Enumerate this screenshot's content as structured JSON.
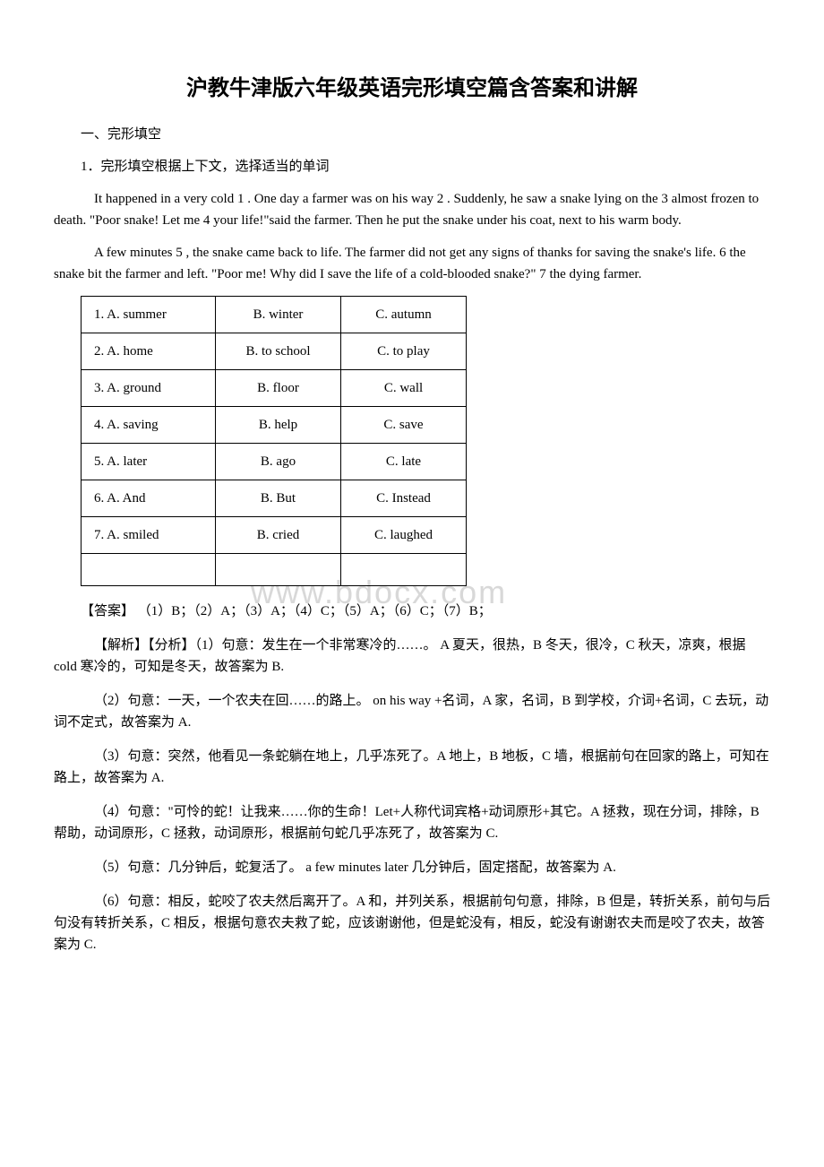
{
  "title": "沪教牛津版六年级英语完形填空篇含答案和讲解",
  "section_heading": "一、完形填空",
  "question_heading": "1．完形填空根据上下文，选择适当的单词",
  "passage1": "It happened in a very cold  1 . One day a farmer was on his way  2 . Suddenly, he saw a snake lying on the  3  almost frozen to death. \"Poor snake! Let me  4  your life!\"said the farmer. Then he put the snake under his coat, next to his warm body.",
  "passage2": "A few minutes  5 , the snake came back to life. The farmer did not get any signs of thanks for saving the snake's life.  6  the snake bit the farmer and left. \"Poor me! Why did I save the life of a cold-blooded snake?\"  7  the dying farmer.",
  "options": [
    {
      "a": "1. A. summer",
      "b": "B. winter",
      "c": "C. autumn"
    },
    {
      "a": "2. A. home",
      "b": "B. to school",
      "c": "C. to play"
    },
    {
      "a": "3. A. ground",
      "b": "B. floor",
      "c": "C. wall"
    },
    {
      "a": "4. A. saving",
      "b": "B. help",
      "c": "C. save"
    },
    {
      "a": "5. A. later",
      "b": "B. ago",
      "c": "C. late"
    },
    {
      "a": "6. A. And",
      "b": "B. But",
      "c": "C. Instead"
    },
    {
      "a": "7. A. smiled",
      "b": "B. cried",
      "c": "C. laughed"
    }
  ],
  "answer_line": "【答案】 （1）B；（2）A；（3）A；（4）C；（5）A；（6）C；（7）B；",
  "analysis_intro": "【解析】【分析】（1）句意：发生在一个非常寒冷的……。 A 夏天，很热，B 冬天，很冷，C 秋天，凉爽，根据 cold 寒冷的，可知是冬天，故答案为 B.",
  "analysis2": "（2）句意：一天，一个农夫在回……的路上。 on his way +名词，A 家，名词，B 到学校，介词+名词，C 去玩，动词不定式，故答案为 A.",
  "analysis3": "（3）句意：突然，他看见一条蛇躺在地上，几乎冻死了。A 地上，B 地板，C 墙，根据前句在回家的路上，可知在路上，故答案为 A.",
  "analysis4": "（4）句意：\"可怜的蛇！让我来……你的生命！Let+人称代词宾格+动词原形+其它。A 拯救，现在分词，排除，B 帮助，动词原形，C 拯救，动词原形，根据前句蛇几乎冻死了，故答案为 C.",
  "analysis5": "（5）句意：几分钟后，蛇复活了。 a few minutes later 几分钟后，固定搭配，故答案为 A.",
  "analysis6": "（6）句意：相反，蛇咬了农夫然后离开了。A 和，并列关系，根据前句句意，排除，B 但是，转折关系，前句与后句没有转折关系，C 相反，根据句意农夫救了蛇，应该谢谢他，但是蛇没有，相反，蛇没有谢谢农夫而是咬了农夫，故答案为 C.",
  "watermark": "www.bdocx.com"
}
